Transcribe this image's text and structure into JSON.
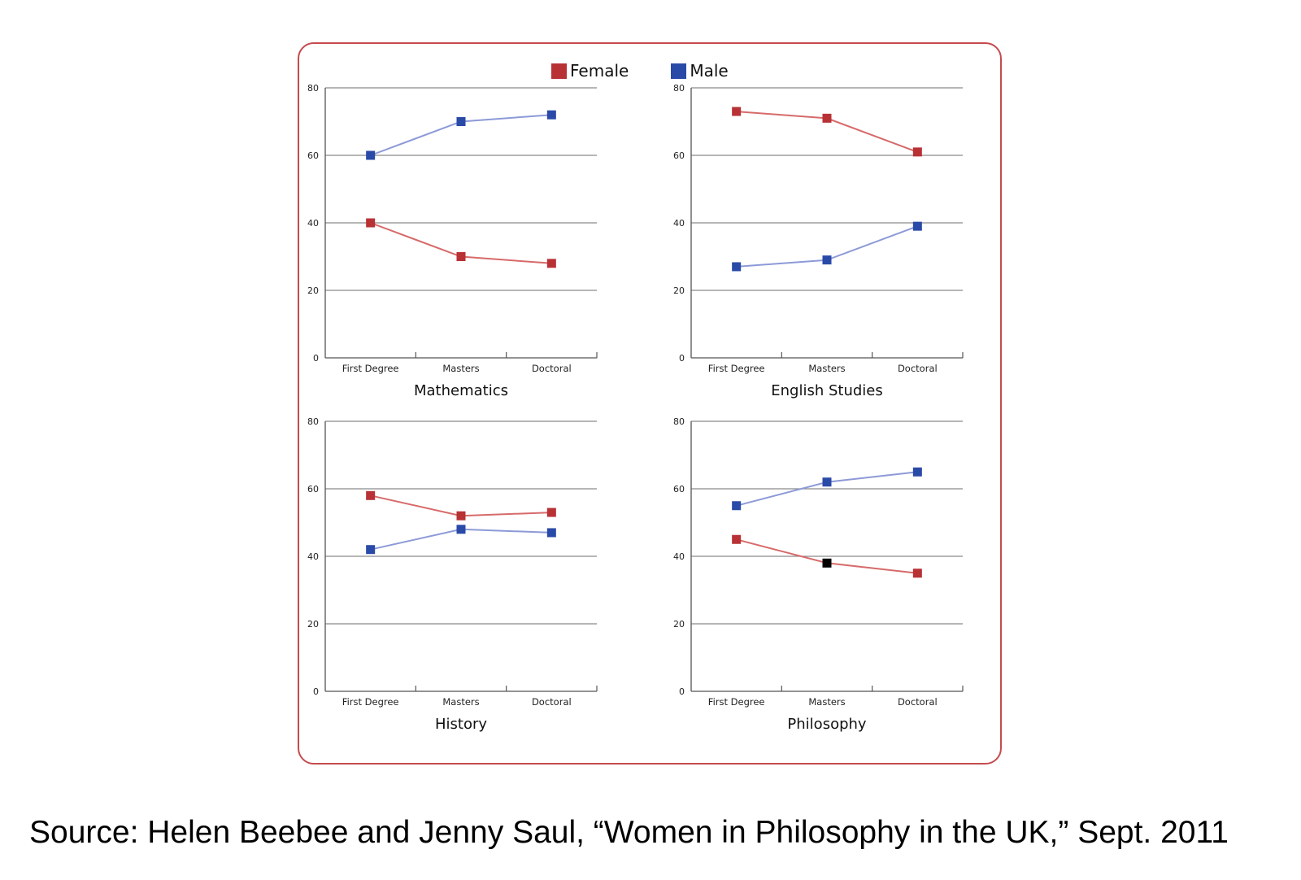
{
  "colors": {
    "frame": "#c54b4e",
    "female": "#b83135",
    "male": "#2a4aa8",
    "female_line": "#d76a6a",
    "male_line": "#8d9ad8",
    "highlight_marker": "#000000"
  },
  "legend": [
    {
      "label": "Female",
      "color": "#b83135"
    },
    {
      "label": "Male",
      "color": "#2a4aa8"
    }
  ],
  "chart_data": [
    {
      "type": "line",
      "title": "Mathematics",
      "categories": [
        "First Degree",
        "Masters",
        "Doctoral"
      ],
      "series": [
        {
          "name": "Female",
          "values": [
            40,
            30,
            28
          ]
        },
        {
          "name": "Male",
          "values": [
            60,
            70,
            72
          ]
        }
      ],
      "ylim": [
        0,
        80
      ],
      "yticks": [
        "0",
        "20",
        "40",
        "60",
        "80"
      ],
      "grid": true,
      "legend_position": "top"
    },
    {
      "type": "line",
      "title": "English Studies",
      "categories": [
        "First Degree",
        "Masters",
        "Doctoral"
      ],
      "series": [
        {
          "name": "Female",
          "values": [
            73,
            71,
            61
          ]
        },
        {
          "name": "Male",
          "values": [
            27,
            29,
            39
          ]
        }
      ],
      "ylim": [
        0,
        80
      ],
      "yticks": [
        "0",
        "20",
        "40",
        "60",
        "80"
      ],
      "grid": true
    },
    {
      "type": "line",
      "title": "History",
      "categories": [
        "First Degree",
        "Masters",
        "Doctoral"
      ],
      "series": [
        {
          "name": "Female",
          "values": [
            58,
            52,
            53
          ]
        },
        {
          "name": "Male",
          "values": [
            42,
            48,
            47
          ]
        }
      ],
      "ylim": [
        0,
        80
      ],
      "yticks": [
        "0",
        "20",
        "40",
        "60",
        "80"
      ],
      "grid": true
    },
    {
      "type": "line",
      "title": "Philosophy",
      "categories": [
        "First Degree",
        "Masters",
        "Doctoral"
      ],
      "series": [
        {
          "name": "Female",
          "values": [
            45,
            38,
            35
          ]
        },
        {
          "name": "Male",
          "values": [
            55,
            62,
            65
          ]
        }
      ],
      "ylim": [
        0,
        80
      ],
      "yticks": [
        "0",
        "20",
        "40",
        "60",
        "80"
      ],
      "grid": true
    }
  ],
  "source": "Source: Helen Beebee and Jenny Saul, “Women in Philosophy in the UK,” Sept. 2011"
}
